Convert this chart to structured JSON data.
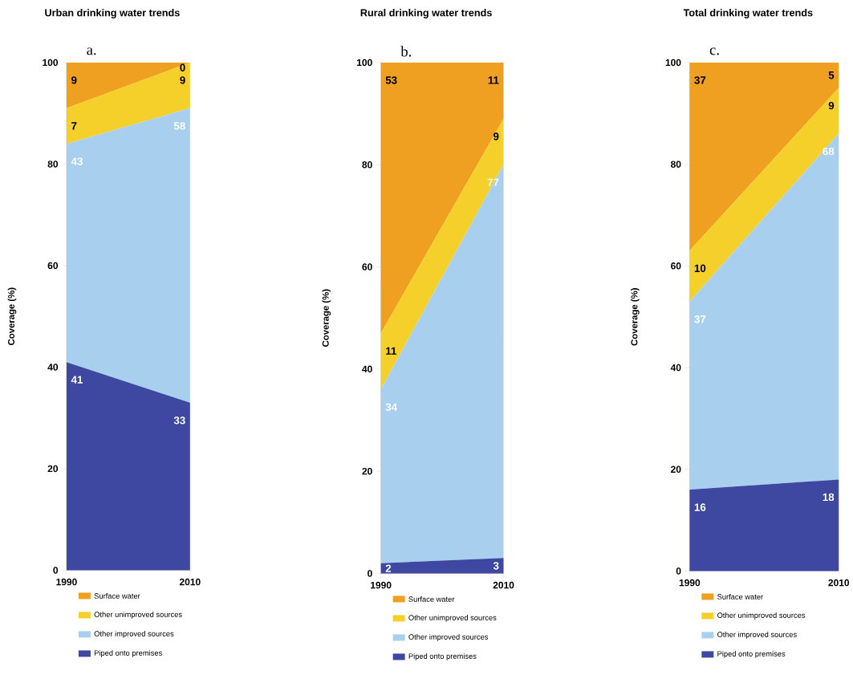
{
  "chart_data": [
    {
      "type": "area",
      "title": "Urban drinking water trends",
      "ylabel": "Coverage (%)",
      "annotations": [
        "a."
      ],
      "stacked": true,
      "data_labels": true,
      "legend": "bottom",
      "categories": [
        "1990",
        "2010"
      ],
      "ylim": [
        0,
        100
      ],
      "yticks": [
        0,
        20,
        40,
        60,
        80,
        100
      ],
      "series": [
        {
          "name": "Piped onto premises",
          "color": "#3f48a0",
          "values": [
            41,
            33
          ]
        },
        {
          "name": "Other improved sources",
          "color": "#a9cfee",
          "values": [
            43,
            58
          ]
        },
        {
          "name": "Other unimproved sources",
          "color": "#f5cf2a",
          "values": [
            7,
            9
          ]
        },
        {
          "name": "Surface water",
          "color": "#f0a020",
          "values": [
            9,
            0
          ]
        }
      ]
    },
    {
      "type": "area",
      "title": "Rural drinking water trends",
      "ylabel": "Coverage (%)",
      "annotations": [
        "b."
      ],
      "stacked": true,
      "data_labels": true,
      "legend": "bottom",
      "categories": [
        "1990",
        "2010"
      ],
      "ylim": [
        0,
        100
      ],
      "yticks": [
        0,
        20,
        40,
        60,
        80,
        100
      ],
      "series": [
        {
          "name": "Piped onto premises",
          "color": "#3f48a0",
          "values": [
            2,
            3
          ]
        },
        {
          "name": "Other improved sources",
          "color": "#a9cfee",
          "values": [
            34,
            77
          ]
        },
        {
          "name": "Other unimproved sources",
          "color": "#f5cf2a",
          "values": [
            11,
            9
          ]
        },
        {
          "name": "Surface water",
          "color": "#f0a020",
          "values": [
            53,
            11
          ]
        }
      ]
    },
    {
      "type": "area",
      "title": "Total drinking water trends",
      "ylabel": "Coverage (%)",
      "annotations": [
        "c."
      ],
      "stacked": true,
      "data_labels": true,
      "legend": "bottom",
      "categories": [
        "1990",
        "2010"
      ],
      "ylim": [
        0,
        100
      ],
      "yticks": [
        0,
        20,
        40,
        60,
        80,
        100
      ],
      "series": [
        {
          "name": "Piped onto premises",
          "color": "#3f48a0",
          "values": [
            16,
            18
          ]
        },
        {
          "name": "Other improved sources",
          "color": "#a9cfee",
          "values": [
            37,
            68
          ]
        },
        {
          "name": "Other unimproved sources",
          "color": "#f5cf2a",
          "values": [
            10,
            9
          ]
        },
        {
          "name": "Surface water",
          "color": "#f0a020",
          "values": [
            37,
            5
          ]
        }
      ]
    }
  ]
}
